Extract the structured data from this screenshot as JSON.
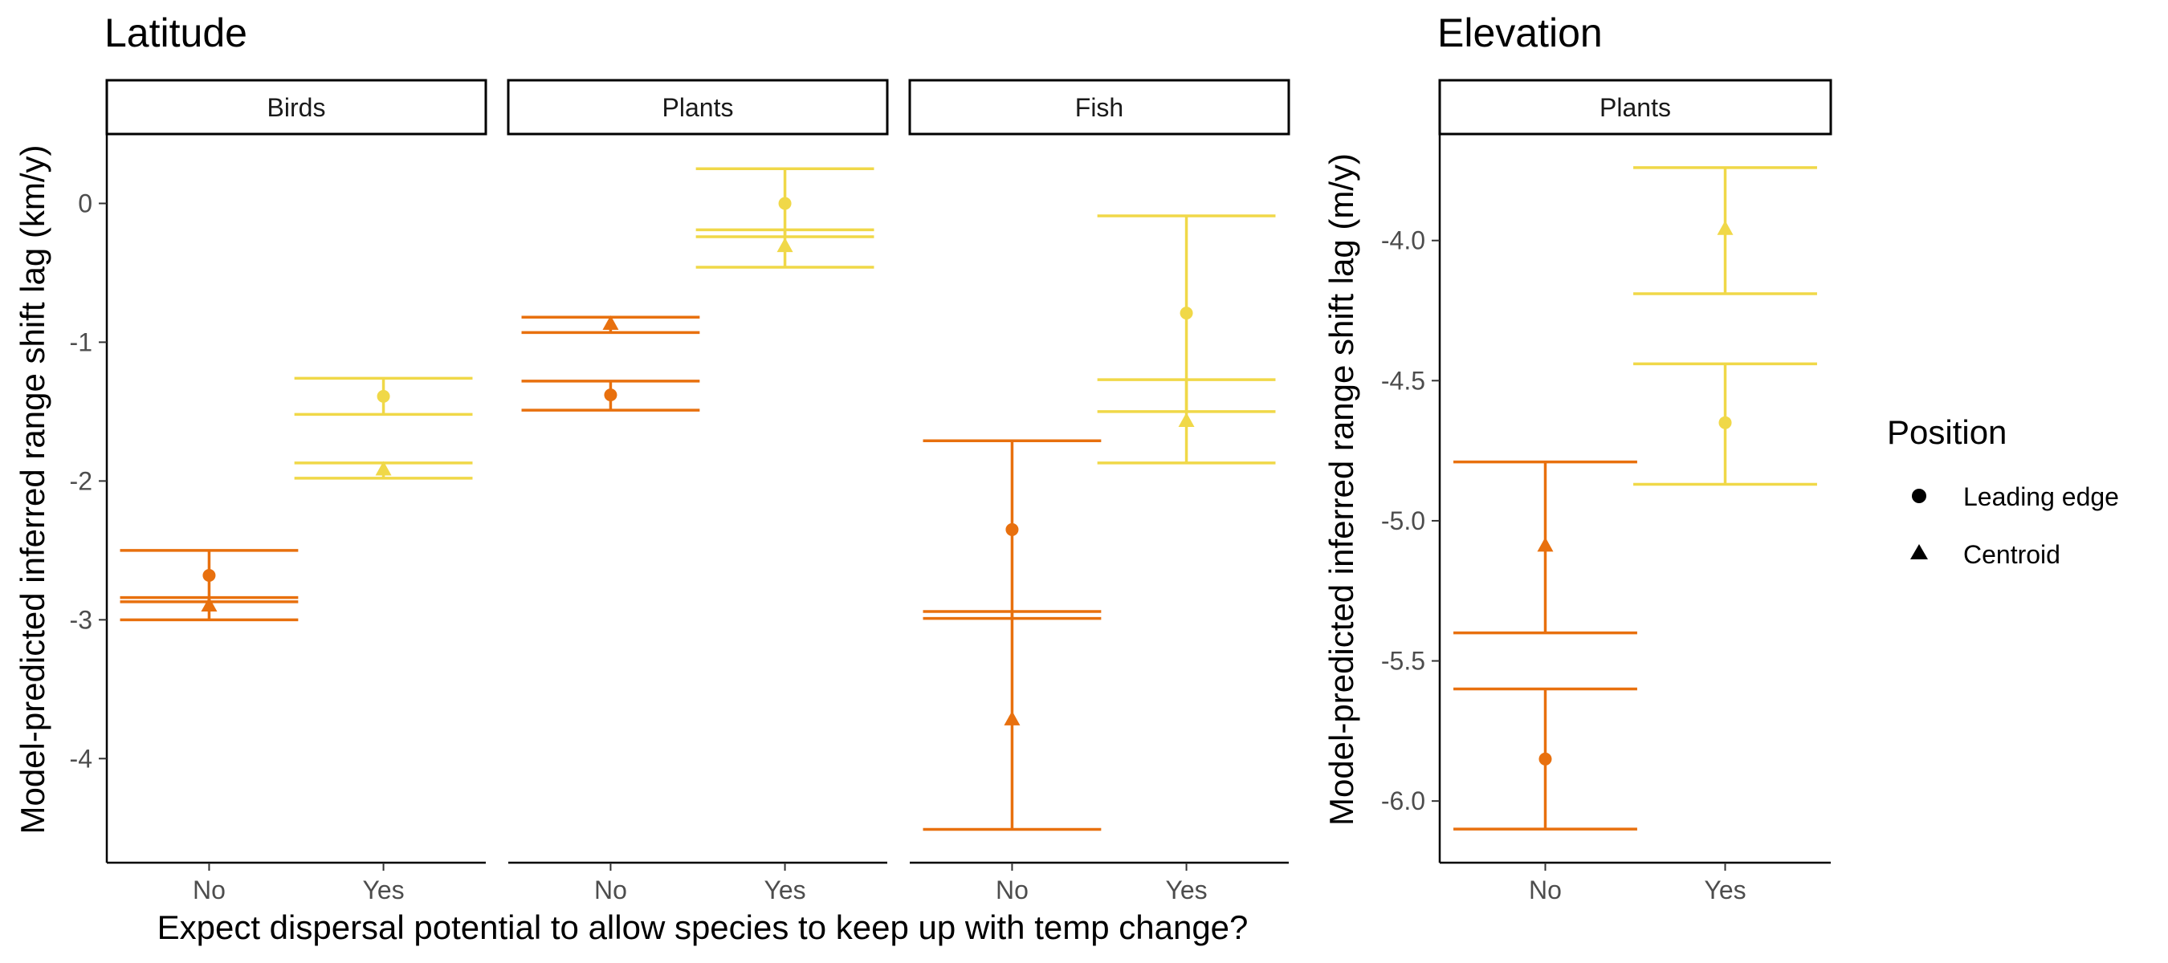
{
  "chart_data": [
    {
      "type": "scatter",
      "title": "Latitude",
      "ylabel": "Model-predicted inferred range shift lag (km/y)",
      "xlabel": "Expect dispersal potential to allow species to keep up with temp change?",
      "ylim": [
        -4.75,
        0.5
      ],
      "yticks": [
        0,
        -1,
        -2,
        -3,
        -4
      ],
      "yticklabels": [
        "0",
        "-1",
        "-2",
        "-3",
        "-4"
      ],
      "categories": [
        "No",
        "Yes"
      ],
      "facets": [
        {
          "label": "Birds",
          "points": [
            {
              "x": "No",
              "position": "Leading edge",
              "y": -2.68,
              "lower": -3.0,
              "upper": -2.5
            },
            {
              "x": "No",
              "position": "Centroid",
              "y": -2.9,
              "lower": -2.87,
              "upper": -2.84
            },
            {
              "x": "Yes",
              "position": "Leading edge",
              "y": -1.39,
              "lower": -1.52,
              "upper": -1.26
            },
            {
              "x": "Yes",
              "position": "Centroid",
              "y": -1.92,
              "lower": -1.98,
              "upper": -1.87
            }
          ]
        },
        {
          "label": "Plants",
          "points": [
            {
              "x": "No",
              "position": "Leading edge",
              "y": -1.38,
              "lower": -1.49,
              "upper": -1.28
            },
            {
              "x": "No",
              "position": "Centroid",
              "y": -0.87,
              "lower": -0.93,
              "upper": -0.82
            },
            {
              "x": "Yes",
              "position": "Leading edge",
              "y": 0.0,
              "lower": -0.24,
              "upper": 0.25
            },
            {
              "x": "Yes",
              "position": "Centroid",
              "y": -0.31,
              "lower": -0.46,
              "upper": -0.19
            }
          ]
        },
        {
          "label": "Fish",
          "points": [
            {
              "x": "No",
              "position": "Leading edge",
              "y": -2.35,
              "lower": -2.99,
              "upper": -1.71
            },
            {
              "x": "No",
              "position": "Centroid",
              "y": -3.72,
              "lower": -4.51,
              "upper": -2.94
            },
            {
              "x": "Yes",
              "position": "Leading edge",
              "y": -0.79,
              "lower": -1.5,
              "upper": -0.09
            },
            {
              "x": "Yes",
              "position": "Centroid",
              "y": -1.57,
              "lower": -1.87,
              "upper": -1.27
            }
          ]
        }
      ]
    },
    {
      "type": "scatter",
      "title": "Elevation",
      "ylabel": "Model-predicted inferred range shift lag (m/y)",
      "xlabel": "",
      "ylim": [
        -6.22,
        -3.62
      ],
      "yticks": [
        -4.0,
        -4.5,
        -5.0,
        -5.5,
        -6.0
      ],
      "yticklabels": [
        "-4.0",
        "-4.5",
        "-5.0",
        "-5.5",
        "-6.0"
      ],
      "categories": [
        "No",
        "Yes"
      ],
      "facets": [
        {
          "label": "Plants",
          "points": [
            {
              "x": "No",
              "position": "Leading edge",
              "y": -5.85,
              "lower": -6.1,
              "upper": -5.6
            },
            {
              "x": "No",
              "position": "Centroid",
              "y": -5.09,
              "lower": -5.4,
              "upper": -4.79
            },
            {
              "x": "Yes",
              "position": "Leading edge",
              "y": -4.65,
              "lower": -4.87,
              "upper": -4.44
            },
            {
              "x": "Yes",
              "position": "Centroid",
              "y": -3.96,
              "lower": -4.19,
              "upper": -3.74
            }
          ]
        }
      ]
    }
  ],
  "legend": {
    "title": "Position",
    "placement": "right",
    "entries": [
      {
        "label": "Leading edge",
        "shape": "circle"
      },
      {
        "label": "Centroid",
        "shape": "triangle"
      }
    ]
  },
  "colors": {
    "No": "#E8700E",
    "Yes": "#F0D848",
    "axis": "#000000",
    "strip_border": "#000000",
    "tick_label": "#4d4d4d"
  }
}
